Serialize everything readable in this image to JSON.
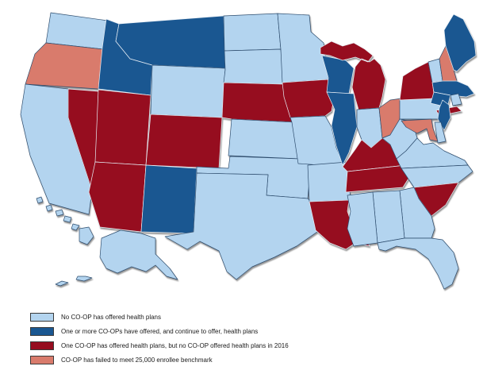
{
  "figure": {
    "background": "#ffffff",
    "type": "us-choropleth",
    "subject": "Status of health insurance CO-OPs by state"
  },
  "legend": {
    "items": [
      {
        "key": "no_coop",
        "label": "No CO-OP has offered health plans",
        "color": "#b3d4ef"
      },
      {
        "key": "continuing",
        "label": "One or more CO-OPs have offered, and continue to offer, health plans",
        "color": "#1a5791"
      },
      {
        "key": "no_plans_2016",
        "label": "One CO-OP has offered health plans, but no CO-OP offered health plans in 2016",
        "color": "#960d1f"
      },
      {
        "key": "under_benchmark",
        "label": "CO-OP has failed to meet 25,000 enrollee benchmark",
        "color": "#d97b6c"
      }
    ]
  },
  "map": {
    "stroke_on_light": "#2e4d6e",
    "stroke_on_dark": "#e7eef5",
    "states": {
      "WA": "no_coop",
      "OR": "under_benchmark",
      "CA": "no_coop",
      "NV": "no_plans_2016",
      "ID": "continuing",
      "MT": "continuing",
      "WY": "no_coop",
      "UT": "no_plans_2016",
      "CO": "no_plans_2016",
      "AZ": "no_plans_2016",
      "NM": "continuing",
      "ND": "no_coop",
      "SD": "no_coop",
      "NE": "no_plans_2016",
      "KS": "no_coop",
      "OK": "no_coop",
      "TX": "no_coop",
      "MN": "no_coop",
      "IA": "no_plans_2016",
      "MO": "no_coop",
      "AR": "no_coop",
      "LA": "no_plans_2016",
      "WI": "continuing",
      "IL": "continuing",
      "MI": "no_plans_2016",
      "IN": "no_coop",
      "OH": "under_benchmark",
      "KY": "no_plans_2016",
      "TN": "no_plans_2016",
      "WV": "no_coop",
      "VA": "no_coop",
      "NC": "no_coop",
      "SC": "no_plans_2016",
      "GA": "no_coop",
      "AL": "no_coop",
      "MS": "no_coop",
      "FL": "no_coop",
      "PA": "no_coop",
      "NY": "no_plans_2016",
      "VT": "no_coop",
      "NH": "under_benchmark",
      "ME": "continuing",
      "MA": "continuing",
      "RI": "no_coop",
      "CT": "continuing",
      "NJ": "continuing",
      "DE": "no_coop",
      "MD": "under_benchmark",
      "AK": "no_coop",
      "HI": "no_coop"
    }
  }
}
